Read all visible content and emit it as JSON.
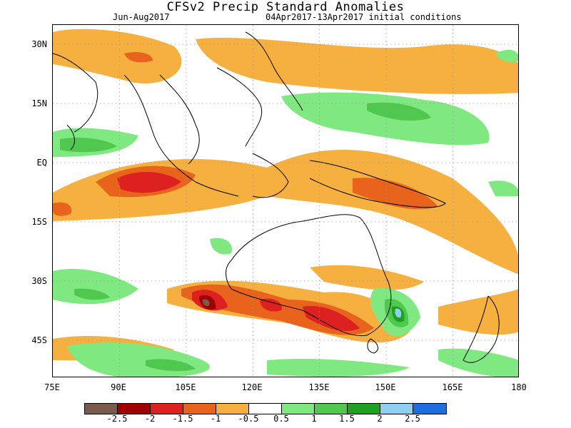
{
  "title": "CFSv2 Precip Standard Anomalies",
  "season": "Jun-Aug2017",
  "init": "04Apr2017-13Apr2017 initial conditions",
  "lat_labels": [
    "30N",
    "15N",
    "EQ",
    "15S",
    "30S",
    "45S"
  ],
  "lon_labels": [
    "75E",
    "90E",
    "105E",
    "120E",
    "135E",
    "150E",
    "165E",
    "180"
  ],
  "colorbar": {
    "labels": [
      "-2.5",
      "-2",
      "-1.5",
      "-1",
      "-0.5",
      "0.5",
      "1",
      "1.5",
      "2",
      "2.5"
    ],
    "colors": [
      "#7a5a4a",
      "#a00000",
      "#dd2020",
      "#e8641c",
      "#f5b040",
      "#ffffff",
      "#80e880",
      "#50c850",
      "#20a020",
      "#90cff0",
      "#1e6ee0"
    ]
  },
  "map": {
    "lon_range": [
      75,
      180
    ],
    "lat_range": [
      -52,
      35
    ],
    "grid": true
  }
}
